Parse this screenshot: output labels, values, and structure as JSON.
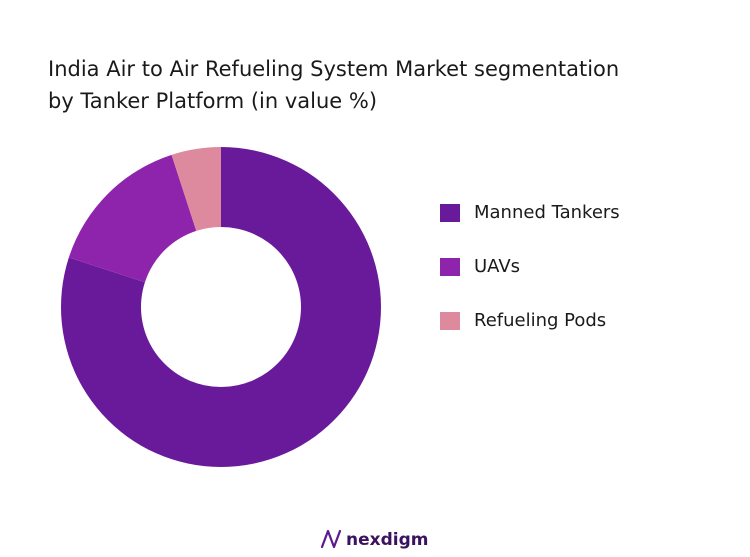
{
  "chart_data": {
    "type": "donut",
    "title": [
      "India Air to Air Refueling System Market segmentation",
      "by Tanker Platform (in value %)"
    ],
    "categories": [
      "Manned Tankers",
      "UAVs",
      "Refueling Pods"
    ],
    "values": [
      80,
      15,
      5
    ],
    "colors": [
      "#691a9b",
      "#8e24ab",
      "#de8a9e"
    ],
    "legend": "right"
  },
  "footer": "nexdigm"
}
